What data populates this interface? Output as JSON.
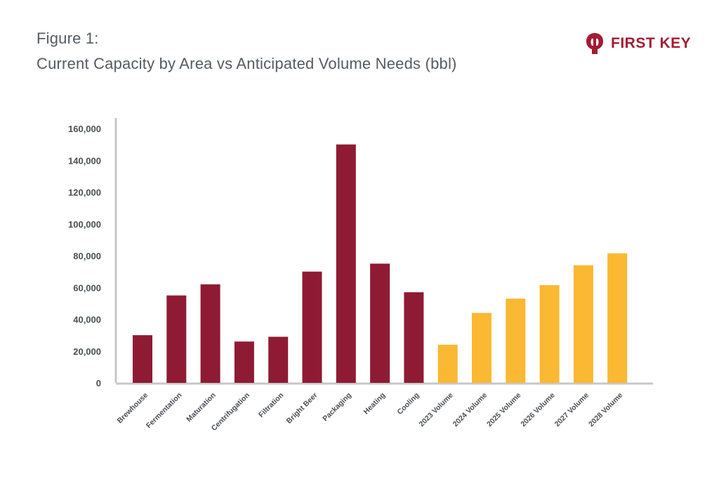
{
  "figure": {
    "label": "Figure 1:",
    "title": "Current Capacity by Area vs Anticipated Volume Needs (bbl)"
  },
  "logo": {
    "text": "FIRST KEY",
    "icon": "first-key-logo-icon",
    "color": "#a31c34"
  },
  "colors": {
    "capacity": "#8e1b33",
    "volume": "#fbb832",
    "axis": "#c7c7c7",
    "text": "#4a4f55"
  },
  "chart_data": {
    "type": "bar",
    "title": "Current Capacity by Area vs Anticipated Volume Needs (bbl)",
    "xlabel": "",
    "ylabel": "",
    "ylim": [
      0,
      160000
    ],
    "yticks": [
      0,
      20000,
      40000,
      60000,
      80000,
      100000,
      120000,
      140000,
      160000
    ],
    "ytick_labels": [
      "0",
      "20,000",
      "40,000",
      "60,000",
      "80,000",
      "100,000",
      "120,000",
      "140,000",
      "160,000"
    ],
    "grid": false,
    "legend": "none",
    "categories": [
      "Brewhouse",
      "Fermentation",
      "Maturation",
      "Centrifugation",
      "Filtration",
      "Bright Beer",
      "Packaging",
      "Heating",
      "Cooling",
      "2023 Volume",
      "2024 Volume",
      "2025 Volume",
      "2026 Volume",
      "2027 Volume",
      "2028 Volume"
    ],
    "values": [
      30000,
      55000,
      62000,
      26000,
      29000,
      70000,
      150000,
      75000,
      57000,
      24000,
      44000,
      53000,
      61500,
      74000,
      81500
    ],
    "bar_colors": [
      "#8e1b33",
      "#8e1b33",
      "#8e1b33",
      "#8e1b33",
      "#8e1b33",
      "#8e1b33",
      "#8e1b33",
      "#8e1b33",
      "#8e1b33",
      "#fbb832",
      "#fbb832",
      "#fbb832",
      "#fbb832",
      "#fbb832",
      "#fbb832"
    ]
  }
}
